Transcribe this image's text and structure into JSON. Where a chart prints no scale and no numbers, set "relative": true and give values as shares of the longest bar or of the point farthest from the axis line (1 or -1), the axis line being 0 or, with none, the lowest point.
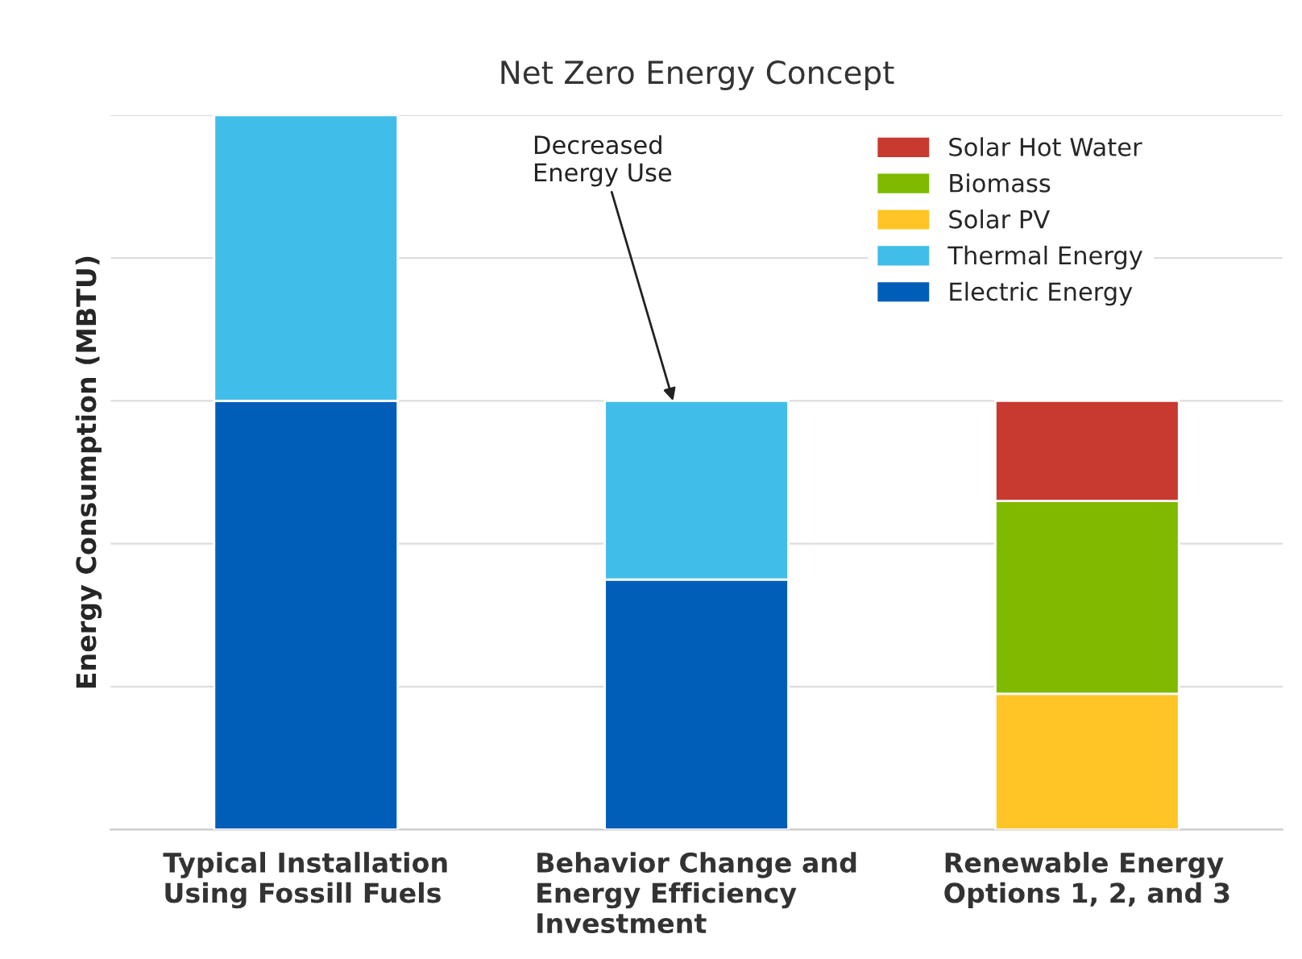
{
  "chart_data": {
    "type": "bar",
    "title": "Net Zero Energy Concept",
    "ylabel": "Energy Consumption (MBTU)",
    "categories": [
      "Typical Installation\nUsing Fossill Fuels",
      "Behavior Change and\nEnergy Efficiency\nInvestment",
      "Renewable Energy\nOptions 1, 2, and 3"
    ],
    "series": [
      {
        "name": "Electric Energy",
        "color": "#005eb8",
        "values": [
          0.6,
          0.35,
          null
        ]
      },
      {
        "name": "Thermal Energy",
        "color": "#41bde9",
        "values": [
          0.4,
          0.25,
          null
        ]
      },
      {
        "name": "Solar PV",
        "color": "#ffc425",
        "values": [
          null,
          null,
          0.19
        ]
      },
      {
        "name": "Biomass",
        "color": "#7fba00",
        "values": [
          null,
          null,
          0.27
        ]
      },
      {
        "name": "Solar Hot Water",
        "color": "#c8392f",
        "values": [
          null,
          null,
          0.14
        ]
      }
    ],
    "stacked": true,
    "relative": true,
    "grid": "y",
    "legend": "top right",
    "tick_labels": "x",
    "annotations": [
      "Decreased\nEnergy Use"
    ]
  }
}
